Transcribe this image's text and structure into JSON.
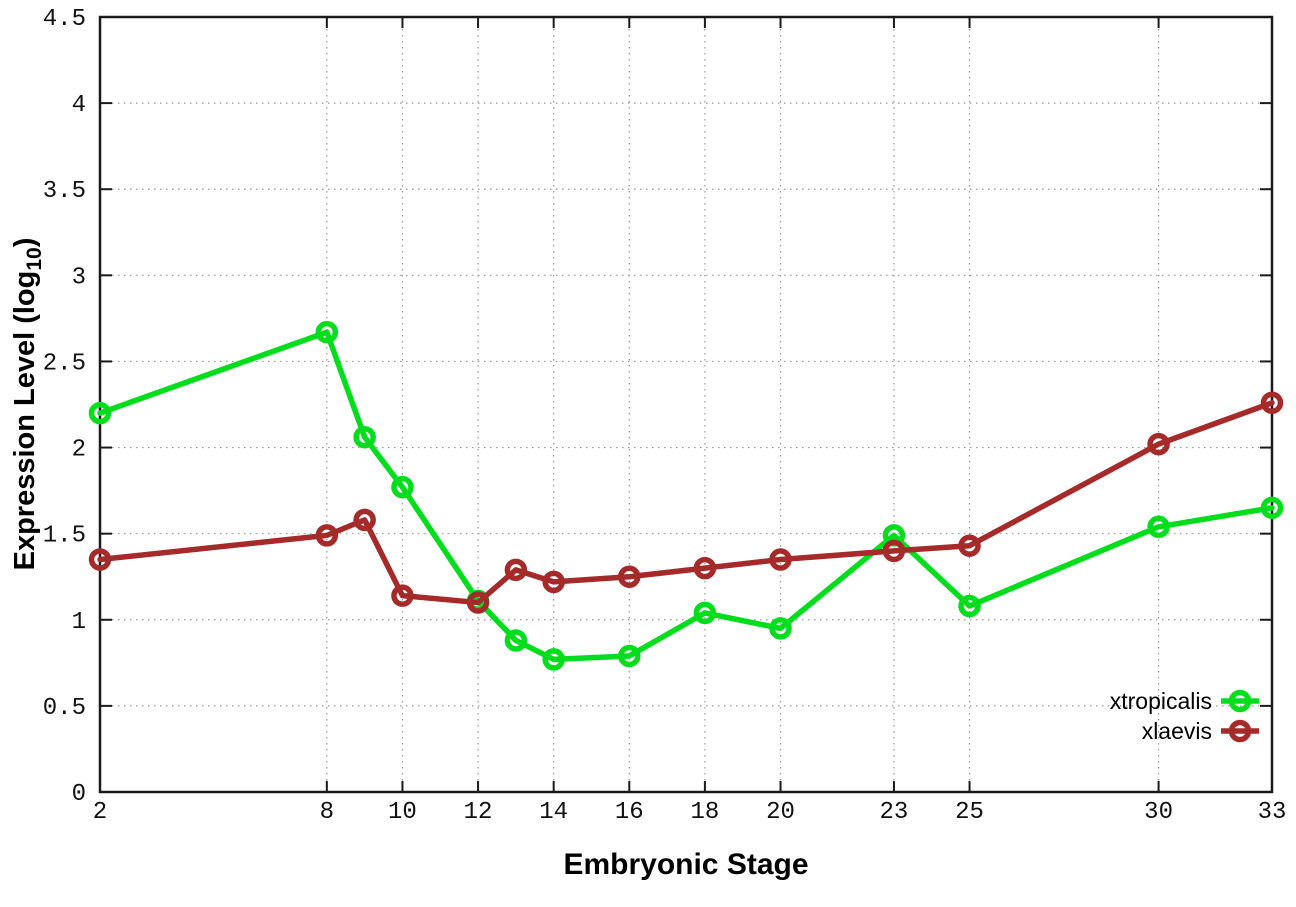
{
  "chart_data": {
    "type": "line",
    "title": "",
    "xlabel": "Embryonic Stage",
    "ylabel": "Expression Level (log10)",
    "ylabel_parts": {
      "pre": "Expression Level (log",
      "sub": "10",
      "post": ")"
    },
    "xlim": [
      2,
      33
    ],
    "ylim": [
      0,
      4.5
    ],
    "x_ticks": [
      2,
      8,
      10,
      12,
      14,
      16,
      18,
      20,
      23,
      25,
      30,
      33
    ],
    "y_ticks": [
      0,
      0.5,
      1,
      1.5,
      2,
      2.5,
      3,
      3.5,
      4,
      4.5
    ],
    "grid": true,
    "legend_position": "bottom-right",
    "x": [
      2,
      8,
      9,
      10,
      12,
      13,
      14,
      16,
      18,
      20,
      23,
      25,
      30,
      33
    ],
    "series": [
      {
        "name": "xtropicalis",
        "color": "#00dd1c",
        "values": [
          2.2,
          2.67,
          2.06,
          1.77,
          1.11,
          0.88,
          0.77,
          0.79,
          1.04,
          0.95,
          1.49,
          1.08,
          1.54,
          1.65
        ]
      },
      {
        "name": "xlaevis",
        "color": "#a52a2a",
        "values": [
          1.35,
          1.49,
          1.58,
          1.14,
          1.1,
          1.29,
          1.22,
          1.25,
          1.3,
          1.35,
          1.4,
          1.43,
          2.02,
          2.26
        ]
      }
    ],
    "colors": {
      "border": "#1a1a1a",
      "grid": "#999999",
      "tick": "#1a1a1a"
    }
  }
}
